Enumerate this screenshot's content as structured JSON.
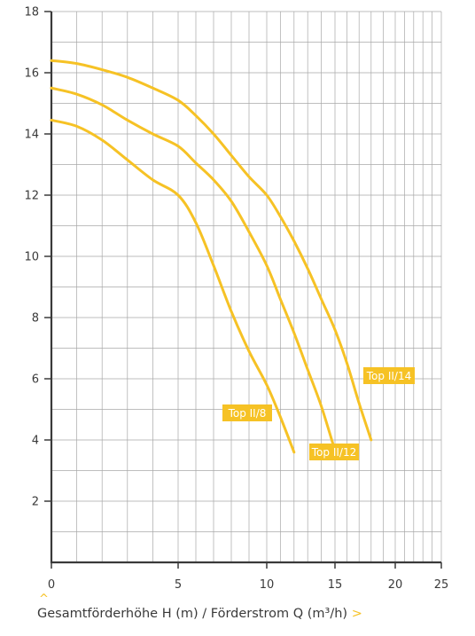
{
  "colors": {
    "curve": "#f6c225",
    "grid": "#a8a8a8",
    "axis": "#3a3a3a",
    "label_bg": "#f6c225"
  },
  "caption": {
    "text": "Gesamtförderhöhe H (m) / Förderstrom Q (m³/h)",
    "arrow": ">",
    "caret": "^"
  },
  "chart_data": {
    "type": "line",
    "xlabel": "Gesamtförderhöhe H (m) / Förderstrom Q (m³/h)",
    "ylabel": "",
    "xscale": "log",
    "xticks": [
      0,
      5,
      10,
      15,
      20,
      25
    ],
    "yticks": [
      2,
      4,
      6,
      8,
      10,
      12,
      14,
      16,
      18
    ],
    "ylim": [
      0,
      18
    ],
    "grid": true,
    "series": [
      {
        "name": "Top II/8",
        "points": [
          [
            0,
            14.45
          ],
          [
            1,
            14.25
          ],
          [
            2,
            13.8
          ],
          [
            3,
            13.15
          ],
          [
            4,
            12.5
          ],
          [
            5,
            12.0
          ],
          [
            6,
            11.1
          ],
          [
            7,
            9.7
          ],
          [
            8,
            8.2
          ],
          [
            9,
            6.9
          ],
          [
            10,
            5.8
          ],
          [
            11,
            4.75
          ],
          [
            12,
            3.6
          ]
        ]
      },
      {
        "name": "Top II/12",
        "points": [
          [
            0,
            15.5
          ],
          [
            1,
            15.3
          ],
          [
            2,
            14.95
          ],
          [
            3,
            14.45
          ],
          [
            4,
            14.0
          ],
          [
            5,
            13.6
          ],
          [
            6,
            13.05
          ],
          [
            7,
            12.5
          ],
          [
            8,
            11.8
          ],
          [
            9,
            10.8
          ],
          [
            10,
            9.7
          ],
          [
            11,
            8.6
          ],
          [
            12,
            7.5
          ],
          [
            13,
            6.3
          ],
          [
            14,
            5.1
          ],
          [
            15,
            3.65
          ]
        ]
      },
      {
        "name": "Top II/14",
        "points": [
          [
            0,
            16.4
          ],
          [
            1,
            16.3
          ],
          [
            2,
            16.1
          ],
          [
            3,
            15.85
          ],
          [
            4,
            15.5
          ],
          [
            5,
            15.1
          ],
          [
            6,
            14.6
          ],
          [
            7,
            14.0
          ],
          [
            8,
            13.3
          ],
          [
            9,
            12.6
          ],
          [
            10,
            12.0
          ],
          [
            11,
            11.3
          ],
          [
            12,
            10.5
          ],
          [
            13,
            9.6
          ],
          [
            14,
            8.6
          ],
          [
            15,
            7.6
          ],
          [
            16,
            6.5
          ],
          [
            17,
            5.2
          ],
          [
            18,
            4.0
          ]
        ]
      }
    ]
  }
}
